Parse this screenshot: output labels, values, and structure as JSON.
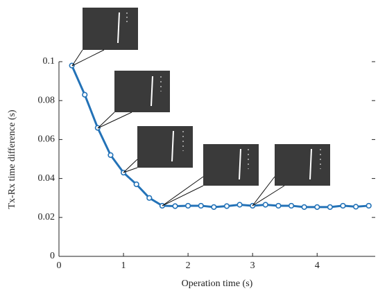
{
  "chart_data": {
    "type": "line",
    "xlabel": "Operation time (s)",
    "ylabel": "Tx-Rx time difference (s)",
    "x": [
      0.2,
      0.4,
      0.6,
      0.8,
      1.0,
      1.2,
      1.4,
      1.6,
      1.8,
      2.0,
      2.2,
      2.4,
      2.6,
      2.8,
      3.0,
      3.2,
      3.4,
      3.6,
      3.8,
      4.0,
      4.2,
      4.4,
      4.6,
      4.8
    ],
    "values": [
      0.098,
      0.083,
      0.066,
      0.052,
      0.043,
      0.037,
      0.03,
      0.026,
      0.0258,
      0.026,
      0.026,
      0.0253,
      0.0258,
      0.0265,
      0.026,
      0.0265,
      0.026,
      0.026,
      0.0253,
      0.0253,
      0.0253,
      0.026,
      0.0255,
      0.026
    ],
    "color": "#2372b7",
    "xlim": [
      0,
      4.9
    ],
    "ylim": [
      0,
      0.1
    ],
    "xticks": [
      0,
      1,
      2,
      3,
      4
    ],
    "yticks": [
      0,
      0.02,
      0.04,
      0.06,
      0.08,
      0.1
    ],
    "grid": false
  }
}
